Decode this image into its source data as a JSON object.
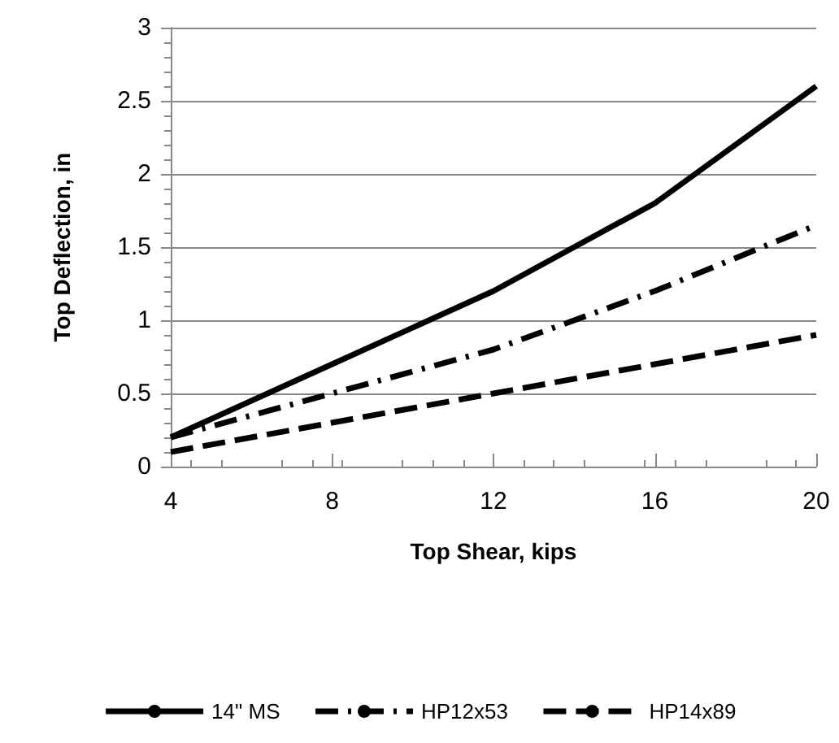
{
  "chart_data": {
    "type": "line",
    "xlabel": "Top Shear, kips",
    "ylabel": "Top Deflection, in",
    "x": [
      4,
      8,
      12,
      16,
      20
    ],
    "series": [
      {
        "name": "14\" MS",
        "color": "#000000",
        "line_style": "solid",
        "values": [
          0.2,
          0.7,
          1.2,
          1.8,
          2.6
        ]
      },
      {
        "name": "HP12x53",
        "color": "#000000",
        "line_style": "dashdot",
        "values": [
          0.2,
          0.5,
          0.8,
          1.2,
          1.65
        ]
      },
      {
        "name": "HP14x89",
        "color": "#000000",
        "line_style": "dashed",
        "values": [
          0.1,
          0.3,
          0.5,
          0.7,
          0.9
        ]
      }
    ],
    "xlim": [
      4,
      20
    ],
    "xticks": [
      4,
      8,
      12,
      16,
      20
    ],
    "ylim": [
      0,
      3
    ],
    "yticks": [
      0,
      0.5,
      1,
      1.5,
      2,
      2.5,
      3
    ],
    "grid": "y",
    "legend": "bottom",
    "marker": "none"
  }
}
